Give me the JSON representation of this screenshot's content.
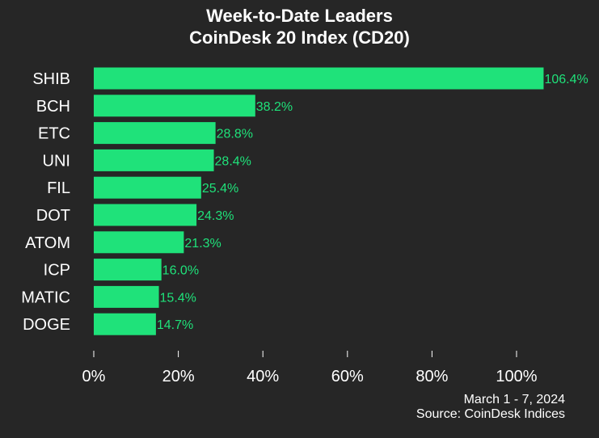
{
  "chart_data": {
    "type": "bar",
    "orientation": "horizontal",
    "title": "Week-to-Date Leaders",
    "subtitle": "CoinDesk 20 Index (CD20)",
    "categories": [
      "SHIB",
      "BCH",
      "ETC",
      "UNI",
      "FIL",
      "DOT",
      "ATOM",
      "ICP",
      "MATIC",
      "DOGE"
    ],
    "values": [
      106.4,
      38.2,
      28.8,
      28.4,
      25.4,
      24.3,
      21.3,
      16.0,
      15.4,
      14.7
    ],
    "value_labels": [
      "106.4%",
      "38.2%",
      "28.8%",
      "28.4%",
      "25.4%",
      "24.3%",
      "21.3%",
      "16.0%",
      "15.4%",
      "14.7%"
    ],
    "x_ticks": [
      0,
      20,
      40,
      60,
      80,
      100
    ],
    "x_tick_labels": [
      "0%",
      "20%",
      "40%",
      "60%",
      "80%",
      "100%"
    ],
    "xlim": [
      0,
      106.4
    ],
    "grid": false,
    "legend": "none",
    "bar_color": "#1fe27a",
    "background_color": "#262626",
    "value_label_color": "#1fe27a"
  },
  "footer": {
    "date_range": "March 1 - 7, 2024",
    "source": "Source: CoinDesk Indices"
  }
}
